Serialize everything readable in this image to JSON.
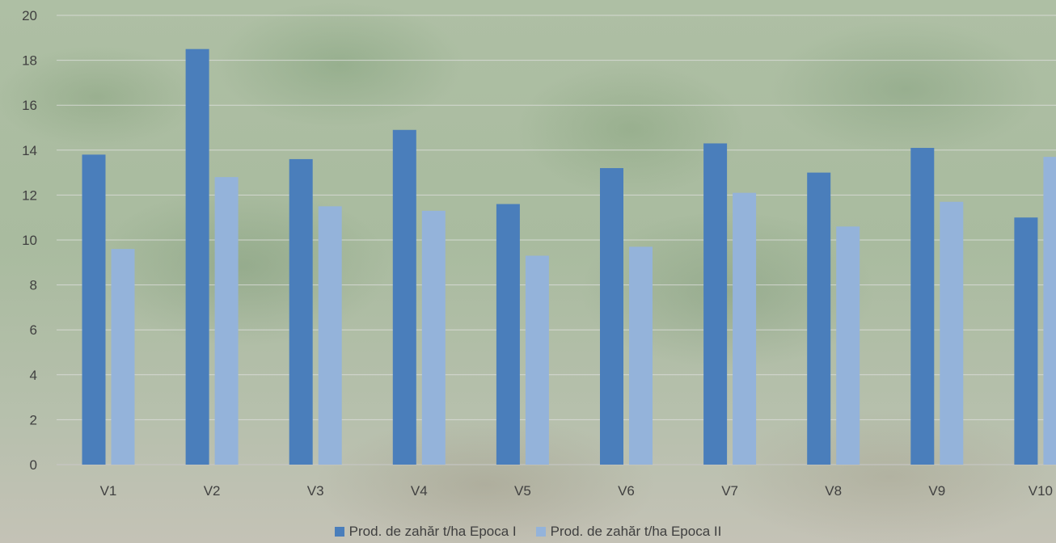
{
  "chart_data": {
    "type": "bar",
    "categories": [
      "V1",
      "V2",
      "V3",
      "V4",
      "V5",
      "V6",
      "V7",
      "V8",
      "V9",
      "V10"
    ],
    "series": [
      {
        "name": "Prod. de zahăr t/ha Epoca I",
        "color": "#4a7ebb",
        "values": [
          13.8,
          18.5,
          13.6,
          14.9,
          11.6,
          13.2,
          14.3,
          13.0,
          14.1,
          11.0
        ]
      },
      {
        "name": "Prod. de zahăr t/ha Epoca II",
        "color": "#94b3da",
        "values": [
          9.6,
          12.8,
          11.5,
          11.3,
          9.3,
          9.7,
          12.1,
          10.6,
          11.7,
          13.7
        ]
      }
    ],
    "yticks": [
      0,
      2,
      4,
      6,
      8,
      10,
      12,
      14,
      16,
      18,
      20
    ],
    "ylim": [
      0,
      20
    ],
    "grid": true,
    "legend": "bottom"
  }
}
